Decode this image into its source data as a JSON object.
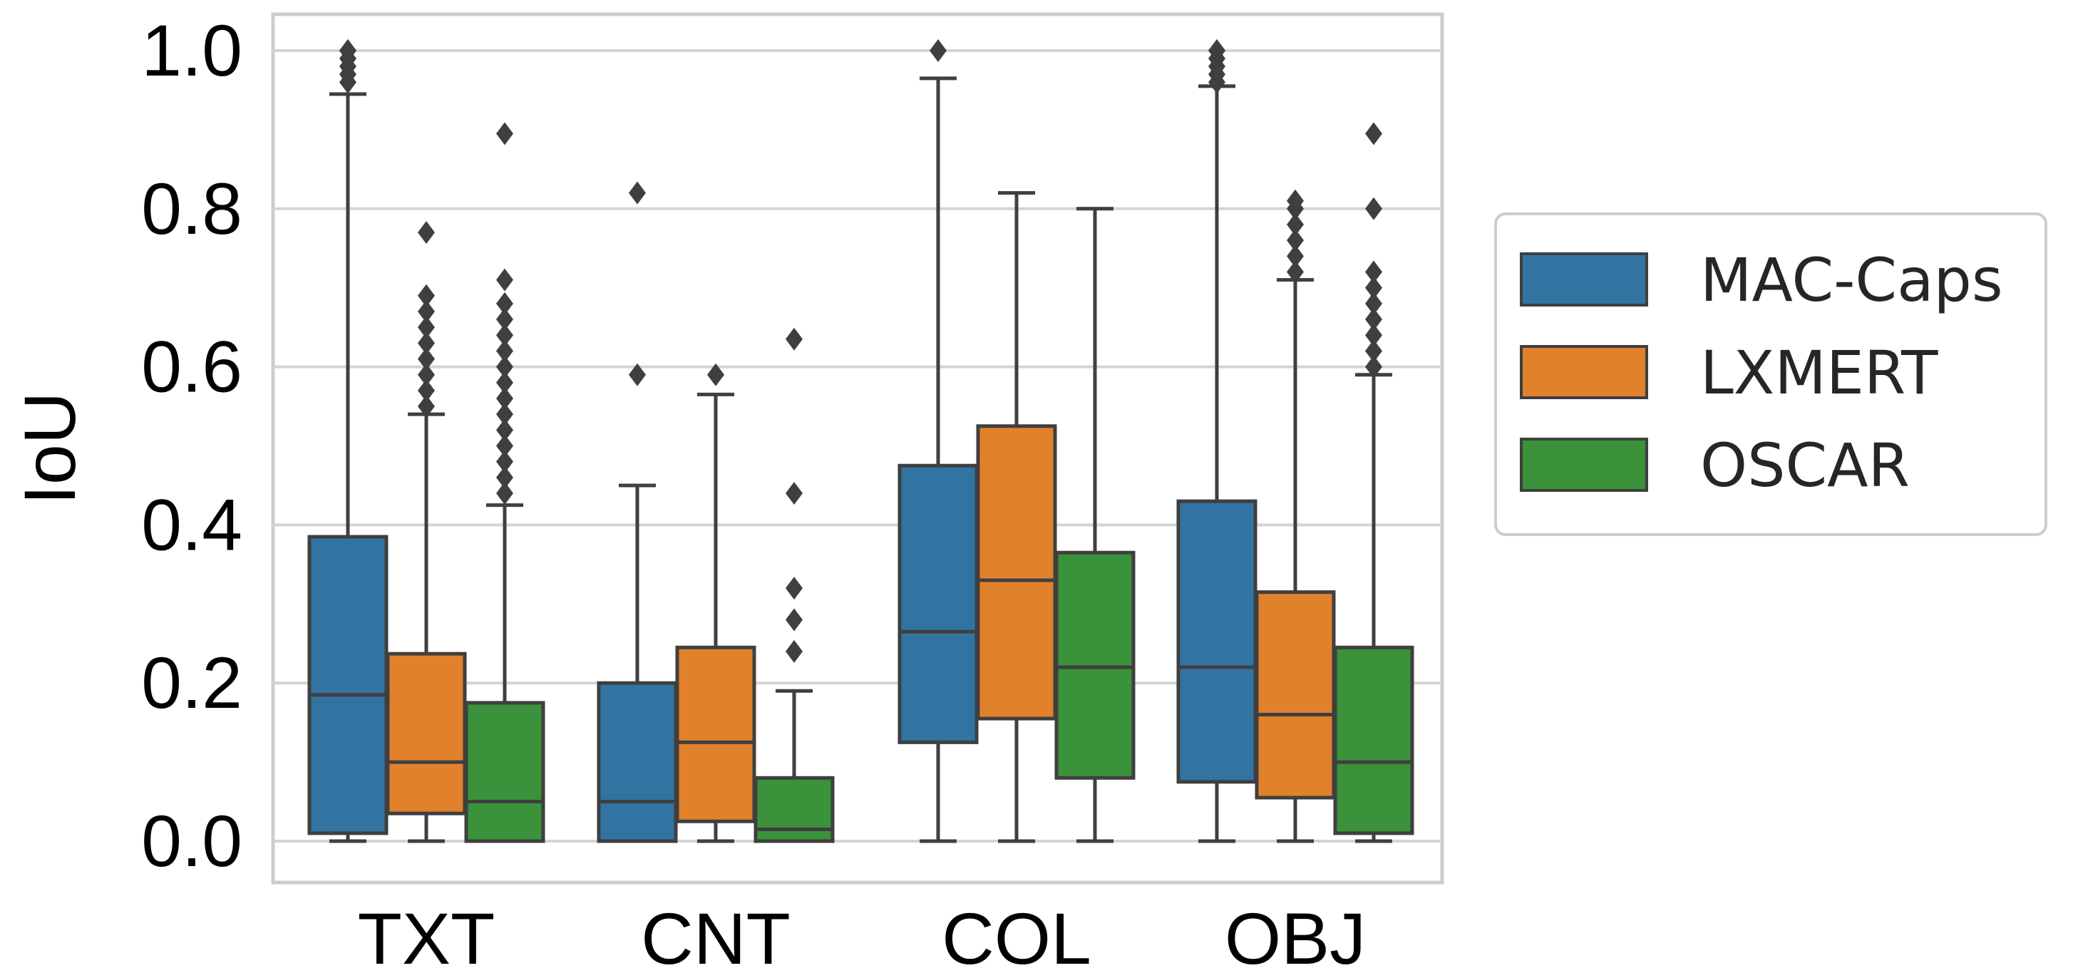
{
  "chart_data": {
    "type": "box",
    "title": "",
    "xlabel": "",
    "ylabel": "IoU",
    "ylim": [
      -0.05,
      1.05
    ],
    "yticks": [
      0.0,
      0.2,
      0.4,
      0.6,
      0.8,
      1.0
    ],
    "ytick_labels": [
      "0.0",
      "0.2",
      "0.4",
      "0.6",
      "0.8",
      "1.0"
    ],
    "grid": "horizontal",
    "categories": [
      "TXT",
      "CNT",
      "COL",
      "OBJ"
    ],
    "legend_position": "right",
    "series": [
      {
        "name": "MAC-Caps",
        "color": "#3274a1",
        "boxes": [
          {
            "q1": 0.01,
            "median": 0.185,
            "q3": 0.385,
            "whisker_low": 0.0,
            "whisker_high": 0.945,
            "outliers": [
              0.96,
              0.97,
              0.98,
              0.99,
              1.0,
              1.0
            ]
          },
          {
            "q1": 0.0,
            "median": 0.05,
            "q3": 0.2,
            "whisker_low": 0.0,
            "whisker_high": 0.45,
            "outliers": [
              0.59,
              0.82
            ]
          },
          {
            "q1": 0.125,
            "median": 0.265,
            "q3": 0.475,
            "whisker_low": 0.0,
            "whisker_high": 0.965,
            "outliers": [
              1.0
            ]
          },
          {
            "q1": 0.075,
            "median": 0.22,
            "q3": 0.43,
            "whisker_low": 0.0,
            "whisker_high": 0.955,
            "outliers": [
              0.96,
              0.97,
              0.98,
              0.99,
              1.0,
              1.0
            ]
          }
        ]
      },
      {
        "name": "LXMERT",
        "color": "#e1812c",
        "boxes": [
          {
            "q1": 0.035,
            "median": 0.1,
            "q3": 0.237,
            "whisker_low": 0.0,
            "whisker_high": 0.54,
            "outliers": [
              0.55,
              0.57,
              0.59,
              0.61,
              0.63,
              0.65,
              0.67,
              0.69,
              0.77
            ]
          },
          {
            "q1": 0.025,
            "median": 0.125,
            "q3": 0.245,
            "whisker_low": 0.0,
            "whisker_high": 0.565,
            "outliers": [
              0.59
            ]
          },
          {
            "q1": 0.155,
            "median": 0.33,
            "q3": 0.525,
            "whisker_low": 0.0,
            "whisker_high": 0.82,
            "outliers": []
          },
          {
            "q1": 0.055,
            "median": 0.16,
            "q3": 0.315,
            "whisker_low": 0.0,
            "whisker_high": 0.71,
            "outliers": [
              0.72,
              0.74,
              0.76,
              0.78,
              0.8,
              0.81
            ]
          }
        ]
      },
      {
        "name": "OSCAR",
        "color": "#3a923a",
        "boxes": [
          {
            "q1": 0.0,
            "median": 0.05,
            "q3": 0.175,
            "whisker_low": 0.0,
            "whisker_high": 0.425,
            "outliers": [
              0.44,
              0.46,
              0.48,
              0.5,
              0.52,
              0.54,
              0.56,
              0.58,
              0.6,
              0.62,
              0.64,
              0.66,
              0.68,
              0.71,
              0.895
            ]
          },
          {
            "q1": 0.0,
            "median": 0.015,
            "q3": 0.08,
            "whisker_low": 0.0,
            "whisker_high": 0.19,
            "outliers": [
              0.24,
              0.28,
              0.32,
              0.44,
              0.635
            ]
          },
          {
            "q1": 0.08,
            "median": 0.22,
            "q3": 0.365,
            "whisker_low": 0.0,
            "whisker_high": 0.8,
            "outliers": []
          },
          {
            "q1": 0.01,
            "median": 0.1,
            "q3": 0.245,
            "whisker_low": 0.0,
            "whisker_high": 0.59,
            "outliers": [
              0.6,
              0.62,
              0.64,
              0.66,
              0.68,
              0.7,
              0.72,
              0.8,
              0.895
            ]
          }
        ]
      }
    ]
  }
}
